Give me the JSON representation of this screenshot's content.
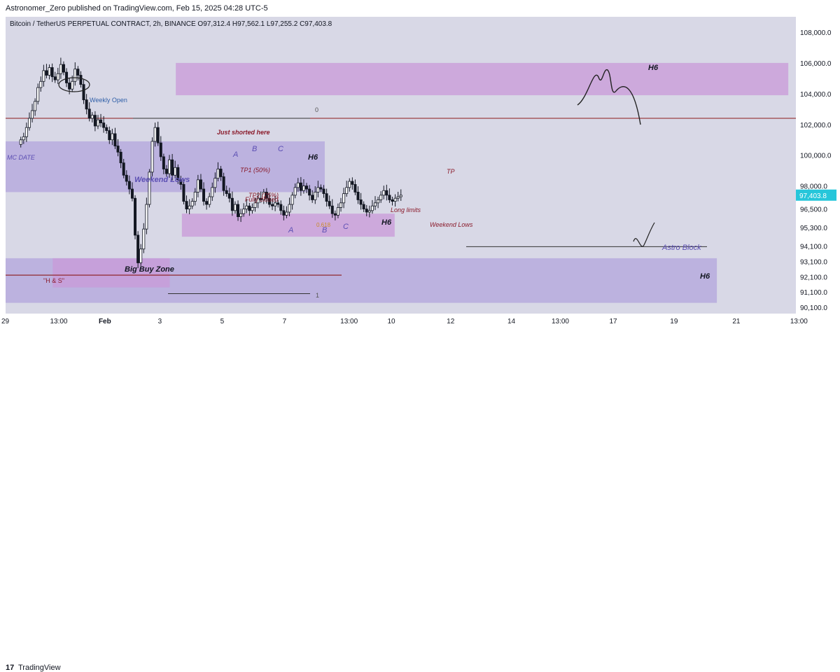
{
  "header": {
    "publisher": "Astronomer_Zero published on TradingView.com, Feb 15, 2025 04:28 UTC-5",
    "symbol_line": "Bitcoin / TetherUS PERPETUAL CONTRACT, 2h, BINANCE  O97,312.4  H97,562.1  L97,255.2  C97,403.8"
  },
  "footer": {
    "logo": "17",
    "brand": "TradingView"
  },
  "colors": {
    "zone_pink": "#c99ad8",
    "zone_purple": "#b3a6dc",
    "price_badge": "#26c6da",
    "candle": "#131722",
    "annotation": "#8a1a2a",
    "hline_red": "#8b1a1a"
  },
  "chart_data": {
    "type": "candlestick",
    "symbol": "Bitcoin / TetherUS PERPETUAL CONTRACT",
    "timeframe": "2h",
    "exchange": "BINANCE",
    "ohlc": {
      "open": 97312.4,
      "high": 97562.1,
      "low": 97255.2,
      "close": 97403.8
    },
    "last_price": "97,403.8",
    "ylim": [
      89700,
      109000
    ],
    "y_ticks": [
      "108,000.0",
      "106,000.0",
      "104,000.0",
      "102,000.0",
      "100,000.0",
      "98,000.0",
      "96,500.0",
      "95,300.0",
      "94,100.0",
      "93,100.0",
      "92,100.0",
      "91,100.0",
      "90,100.0"
    ],
    "y_tick_values": [
      108000,
      106000,
      104000,
      102000,
      100000,
      98000,
      96500,
      95300,
      94100,
      93100,
      92100,
      91100,
      90100
    ],
    "x_ticks": [
      "29",
      "13:00",
      "Feb",
      "3",
      "5",
      "7",
      "13:00",
      "10",
      "12",
      "14",
      "13:00",
      "17",
      "19",
      "21",
      "13:00"
    ],
    "x_tick_index": [
      0,
      32,
      64,
      103,
      144,
      185,
      223,
      254,
      293,
      333,
      362,
      400,
      440,
      481,
      519
    ],
    "x_total_bars": 520,
    "series_close": [
      101000,
      101200,
      101800,
      102400,
      102900,
      103500,
      104400,
      104800,
      105500,
      105200,
      105700,
      105100,
      104900,
      105300,
      105900,
      105400,
      104700,
      104300,
      104800,
      105600,
      105200,
      104600,
      103600,
      103000,
      102400,
      102600,
      101900,
      102300,
      102100,
      101800,
      101600,
      101000,
      101400,
      100600,
      100200,
      99500,
      98700,
      98300,
      97800,
      97200,
      94800,
      93000,
      93900,
      95200,
      96800,
      98900,
      100900,
      101800,
      100800,
      99900,
      99100,
      98800,
      99700,
      98700,
      99200,
      98400,
      98100,
      97000,
      96500,
      96700,
      97000,
      97600,
      98400,
      97800,
      97000,
      96800,
      97300,
      97900,
      98500,
      99100,
      98600,
      97700,
      97500,
      97200,
      96400,
      96800,
      96000,
      96200,
      96500,
      96700,
      96400,
      96600,
      96900,
      97200,
      97100,
      97600,
      97200,
      96800,
      96700,
      96900,
      96800,
      96400,
      96100,
      96300,
      96800,
      97400,
      97900,
      98200,
      97700,
      98000,
      97800,
      97400,
      97100,
      97600,
      97900,
      97800,
      97500,
      97000,
      96700,
      96200,
      96100,
      96600,
      96900,
      97500,
      97900,
      98300,
      98100,
      97600,
      97100,
      96800,
      96500,
      96300,
      96400,
      96700,
      96900,
      97100,
      97400,
      97700,
      97400,
      97100,
      97000,
      97200,
      97300,
      97400
    ],
    "zones": [
      {
        "name": "h6-supply-zone",
        "label": "H6",
        "from": 103900,
        "to": 106000,
        "x0": 112,
        "x1": 515,
        "color": "pink"
      },
      {
        "name": "daily-zone",
        "label": "MC DATE",
        "from": 97600,
        "to": 100900,
        "x0": 0,
        "x1": 210,
        "color": "purple"
      },
      {
        "name": "fvg-zone",
        "label": "",
        "from": 94700,
        "to": 96200,
        "x0": 116,
        "x1": 256,
        "color": "pink"
      },
      {
        "name": "big-buy-zone",
        "label": "H6",
        "from": 90400,
        "to": 93300,
        "x0": 0,
        "x1": 468,
        "color": "purple"
      },
      {
        "name": "hns-zone",
        "label": "",
        "from": 91400,
        "to": 93300,
        "x0": 31,
        "x1": 108,
        "color": "pink"
      }
    ],
    "annotations": {
      "weekly_open": "Weekly Open",
      "just_shorted": "Just shorted here",
      "mc_date": "MC DATE",
      "weekend_lows": "Weekend Lows",
      "tp_50": "TP1 (50%)",
      "tp_25": "TP2 (25%)",
      "fully_closed": "Fully closed",
      "h6_a": "H6",
      "h6_b": "H6",
      "h6_c": "H6",
      "h6_d": "H6",
      "long_limits": "Long limits",
      "weekend_lows_2": "Weekend Lows",
      "tp": "TP",
      "astro_block": "Astro Block",
      "big_buy_zone": "Big Buy Zone",
      "hns": "\"H & S\"",
      "label_A1": "A",
      "label_B1": "B",
      "label_C1": "C",
      "label_A2": "A",
      "label_B2": "B",
      "label_C2": "C",
      "fib_0": "0",
      "fib_1": "1",
      "fib_0618": "0.618"
    }
  }
}
